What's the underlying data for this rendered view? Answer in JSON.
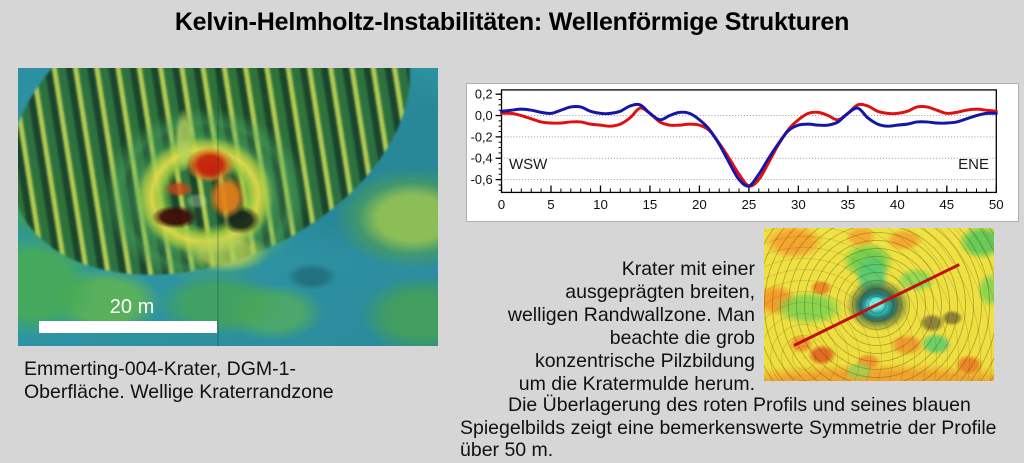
{
  "page": {
    "background_color": "#d6d6d6"
  },
  "title": "Kelvin-Helmholtz-Instabilitäten: Wellenförmige Strukturen",
  "dem": {
    "scale_label": "20 m",
    "caption_lines": [
      "Emmerting-004-Krater, DGM-1-",
      "Oberfläche. Wellige Kraterrandzone"
    ]
  },
  "chart_data": {
    "type": "line",
    "title": "",
    "xlabel": "",
    "ylabel": "",
    "xlim": [
      0,
      50
    ],
    "ylim": [
      -0.72,
      0.24
    ],
    "x_ticks": [
      0,
      5,
      10,
      15,
      20,
      25,
      30,
      35,
      40,
      45,
      50
    ],
    "y_ticks": [
      0.2,
      0.0,
      -0.2,
      -0.4,
      -0.6
    ],
    "y_tick_labels": [
      "0,2",
      "0,0",
      "-0,2",
      "-0,4",
      "-0,6"
    ],
    "grid_values": [
      0.0,
      -0.2,
      -0.4,
      -0.6
    ],
    "grid": "horizontal-dashed",
    "legend": "none",
    "annotations": [
      {
        "text": "WSW",
        "position": "inside-left"
      },
      {
        "text": "ENE",
        "position": "inside-right"
      }
    ],
    "x": [
      0,
      1,
      2,
      3,
      4,
      5,
      6,
      7,
      8,
      9,
      10,
      11,
      12,
      13,
      14,
      15,
      16,
      17,
      18,
      19,
      20,
      21,
      22,
      23,
      24,
      25,
      26,
      27,
      28,
      29,
      30,
      31,
      32,
      33,
      34,
      35,
      36,
      37,
      38,
      39,
      40,
      41,
      42,
      43,
      44,
      45,
      46,
      47,
      48,
      49,
      50
    ],
    "series": [
      {
        "name": "rotes Profil",
        "color": "#e01010",
        "values": [
          0.02,
          0.02,
          0.0,
          -0.03,
          -0.06,
          -0.07,
          -0.07,
          -0.06,
          -0.06,
          -0.08,
          -0.09,
          -0.1,
          -0.08,
          -0.02,
          0.07,
          0.02,
          -0.06,
          -0.09,
          -0.09,
          -0.08,
          -0.09,
          -0.14,
          -0.26,
          -0.4,
          -0.55,
          -0.66,
          -0.6,
          -0.44,
          -0.27,
          -0.13,
          -0.04,
          0.02,
          0.03,
          0.0,
          -0.04,
          0.02,
          0.1,
          0.09,
          0.04,
          0.02,
          0.02,
          0.04,
          0.08,
          0.08,
          0.05,
          0.02,
          0.03,
          0.05,
          0.06,
          0.05,
          0.04
        ]
      },
      {
        "name": "blaues Spiegelbild",
        "color": "#1515a8",
        "values": [
          0.04,
          0.05,
          0.06,
          0.05,
          0.03,
          0.02,
          0.05,
          0.08,
          0.08,
          0.04,
          0.02,
          0.02,
          0.04,
          0.09,
          0.1,
          0.02,
          -0.04,
          0.0,
          0.03,
          0.02,
          -0.04,
          -0.13,
          -0.27,
          -0.44,
          -0.6,
          -0.66,
          -0.55,
          -0.4,
          -0.26,
          -0.14,
          -0.09,
          -0.08,
          -0.09,
          -0.09,
          -0.06,
          0.02,
          0.07,
          -0.02,
          -0.08,
          -0.1,
          -0.09,
          -0.08,
          -0.06,
          -0.06,
          -0.07,
          -0.07,
          -0.06,
          -0.03,
          0.0,
          0.02,
          0.02
        ]
      }
    ]
  },
  "description": {
    "lines": [
      "Krater mit einer",
      "ausgeprägten breiten,",
      "welligen Randwallzone. Man",
      "beachte die grob",
      "konzentrische Pilzbildung",
      "um die Kratermulde herum."
    ]
  },
  "symmetry_note": {
    "lines": [
      "Die Überlagerung des roten Profils und seines blauen",
      "Spiegelbilds zeigt eine bemerkenswerte Symmetrie der Profile",
      "über 50 m."
    ]
  }
}
